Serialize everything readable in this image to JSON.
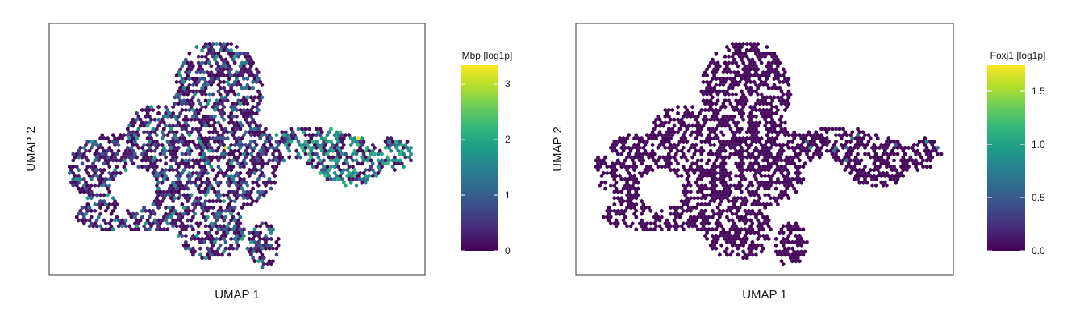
{
  "chart_data": [
    {
      "type": "heatmap",
      "plot_kind": "UMAP embedding, hexbin colored by expression",
      "xlabel": "UMAP 1",
      "ylabel": "UMAP 2",
      "ticks_shown": false,
      "grid": false,
      "colorbar": {
        "title": "Mbp [log1p]",
        "colormap": "viridis",
        "range": [
          0,
          3.35
        ],
        "ticks": [
          0,
          1,
          2,
          3
        ],
        "tick_labels": [
          "0",
          "1",
          "2",
          "3"
        ],
        "placement": "right"
      },
      "expression_summary": {
        "background": "mostly near 0 (dark purple)",
        "scattered_values": "many cells 0.5–1.5 throughout",
        "elevated_region": "right arm of embedding, values ~1.5–2.3",
        "max_cells": "a few cells ~3.2 (yellow)"
      }
    },
    {
      "type": "heatmap",
      "plot_kind": "UMAP embedding, hexbin colored by expression",
      "xlabel": "UMAP 1",
      "ylabel": "UMAP 2",
      "ticks_shown": false,
      "grid": false,
      "colorbar": {
        "title": "Foxj1 [log1p]",
        "colormap": "viridis",
        "range": [
          0,
          1.75
        ],
        "ticks": [
          0,
          0.5,
          1.0,
          1.5
        ],
        "tick_labels": [
          "0.0",
          "0.5",
          "1.0",
          "1.5"
        ],
        "placement": "right"
      },
      "expression_summary": {
        "background": "nearly all cells ~0 (dark purple)",
        "scattered_values": "a handful of cells ~0.4–1.0 on right arm",
        "max_cells": "2–3 isolated cells ~1.7 (yellow)"
      }
    }
  ],
  "colors": {
    "viridis": [
      "#440154",
      "#482878",
      "#3e4989",
      "#31688e",
      "#26828e",
      "#1f9e89",
      "#35b779",
      "#6ece58",
      "#b5de2b",
      "#fde725"
    ],
    "frame": "#333333",
    "background": "#ffffff"
  }
}
